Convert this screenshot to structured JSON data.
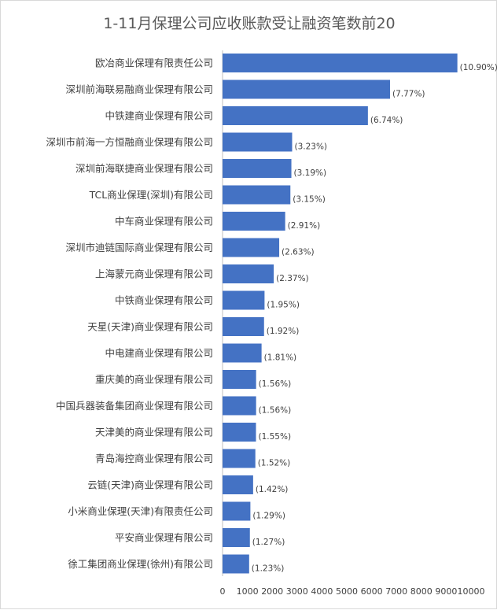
{
  "chart_data": {
    "type": "bar",
    "orientation": "horizontal",
    "title": "1-11月保理公司应收账款受让融资笔数前20",
    "xlabel": "",
    "ylabel": "",
    "xlim": [
      0,
      10000
    ],
    "x_ticks": [
      "0",
      "1000",
      "2000",
      "3000",
      "4000",
      "5000",
      "6000",
      "7000",
      "8000",
      "9000",
      "10000"
    ],
    "grid": false,
    "legend": "none",
    "bar_color": "#4472c4",
    "categories": [
      "欧冶商业保理有限责任公司",
      "深圳前海联易融商业保理有限公司",
      "中铁建商业保理有限公司",
      "深圳市前海一方恒融商业保理有限公司",
      "深圳前海联捷商业保理有限公司",
      "TCL商业保理(深圳)有限公司",
      "中车商业保理有限公司",
      "深圳市迪链国际商业保理有限公司",
      "上海蒙元商业保理有限公司",
      "中铁商业保理有限公司",
      "天星(天津)商业保理有限公司",
      "中电建商业保理有限公司",
      "重庆美的商业保理有限公司",
      "中国兵器装备集团商业保理有限公司",
      "天津美的商业保理有限公司",
      "青岛海控商业保理有限公司",
      "云链(天津)商业保理有限公司",
      "小米商业保理(天津)有限责任公司",
      "平安商业保理有限公司",
      "徐工集团商业保理(徐州)有限公司"
    ],
    "values": [
      9450,
      6740,
      5850,
      2800,
      2770,
      2730,
      2520,
      2280,
      2060,
      1690,
      1670,
      1570,
      1350,
      1350,
      1345,
      1320,
      1230,
      1120,
      1100,
      1070
    ],
    "data_labels": [
      "(10.90%)",
      "(7.77%)",
      "(6.74%)",
      "(3.23%)",
      "(3.19%)",
      "(3.15%)",
      "(2.91%)",
      "(2.63%)",
      "(2.37%)",
      "(1.95%)",
      "(1.92%)",
      "(1.81%)",
      "(1.56%)",
      "(1.56%)",
      "(1.55%)",
      "(1.52%)",
      "(1.42%)",
      "(1.29%)",
      "(1.27%)",
      "(1.23%)"
    ]
  }
}
